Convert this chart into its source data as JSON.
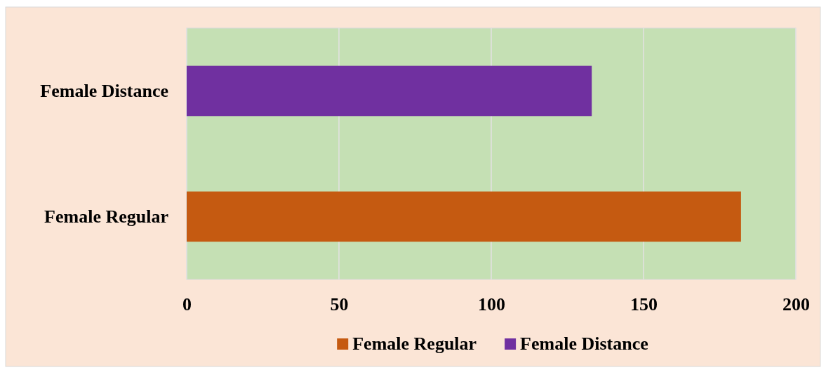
{
  "chart_data": {
    "type": "bar",
    "orientation": "horizontal",
    "categories": [
      "Female Distance",
      "Female Regular"
    ],
    "series": [
      {
        "name": "Female Regular",
        "color": "#c55a11",
        "values": [
          null,
          182
        ]
      },
      {
        "name": "Female Distance",
        "color": "#7030a0",
        "values": [
          133,
          null
        ]
      }
    ],
    "xlim": [
      0,
      200
    ],
    "xticks": [
      0,
      50,
      100,
      150,
      200
    ],
    "grid": "x",
    "legend": "bottom"
  }
}
